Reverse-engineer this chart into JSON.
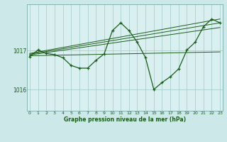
{
  "bg_color": "#cde8e8",
  "plot_bg_color": "#daf0f0",
  "line_color": "#1a5c1a",
  "grid_color": "#aacece",
  "xlabel": "Graphe pression niveau de la mer (hPa)",
  "yticks": [
    1016,
    1017
  ],
  "xticks": [
    0,
    1,
    2,
    3,
    4,
    5,
    6,
    7,
    8,
    9,
    10,
    11,
    12,
    13,
    14,
    15,
    16,
    17,
    18,
    19,
    20,
    21,
    22,
    23
  ],
  "xlim": [
    -0.3,
    23.3
  ],
  "ylim": [
    1015.45,
    1018.2
  ],
  "main_x": [
    0,
    1,
    2,
    3,
    4,
    5,
    6,
    7,
    8,
    9,
    10,
    11,
    12,
    13,
    14,
    15,
    16,
    17,
    18,
    19,
    20,
    21,
    22,
    23
  ],
  "main_y": [
    1016.85,
    1017.02,
    1016.93,
    1016.9,
    1016.82,
    1016.62,
    1016.55,
    1016.55,
    1016.75,
    1016.92,
    1017.52,
    1017.72,
    1017.52,
    1017.22,
    1016.82,
    1016.0,
    1016.18,
    1016.33,
    1016.53,
    1017.02,
    1017.22,
    1017.62,
    1017.82,
    1017.72
  ],
  "line1_x": [
    0,
    23
  ],
  "line1_y": [
    1016.93,
    1017.82
  ],
  "line2_x": [
    0,
    23
  ],
  "line2_y": [
    1016.91,
    1017.72
  ],
  "line3_x": [
    0,
    23
  ],
  "line3_y": [
    1016.89,
    1017.6
  ],
  "line4_x": [
    0,
    23
  ],
  "line4_y": [
    1016.87,
    1016.97
  ]
}
